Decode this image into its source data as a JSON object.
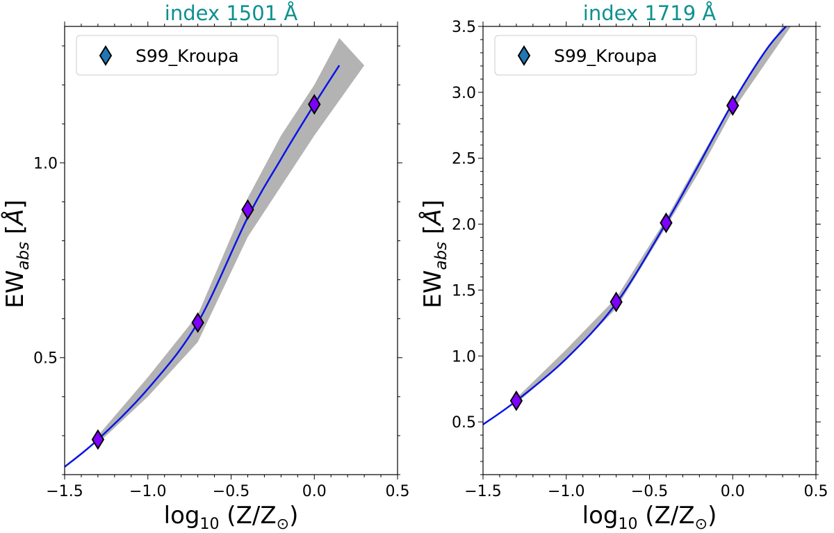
{
  "chart_data": [
    {
      "type": "line",
      "title": "index 1501 Å",
      "xlabel": "log10 (Z/Z⊙)",
      "ylabel": "EWabs [Å]",
      "xlim": [
        -1.5,
        0.5
      ],
      "ylim": [
        0.2,
        1.35
      ],
      "xticks": [
        -1.5,
        -1.0,
        -0.5,
        0.0,
        0.5
      ],
      "xtick_labels": [
        "−1.5",
        "−1.0",
        "−0.5",
        "0.0",
        "0.5"
      ],
      "yticks": [
        0.5,
        1.0
      ],
      "ytick_labels": [
        "0.5",
        "1.0"
      ],
      "legend": {
        "label": "S99_Kroupa",
        "location": "upper-left"
      },
      "points": {
        "x": [
          -1.3,
          -0.7,
          -0.4,
          0.0
        ],
        "y": [
          0.29,
          0.59,
          0.88,
          1.15
        ]
      },
      "fit_curve": {
        "x": [
          -1.5,
          -1.3,
          -1.0,
          -0.7,
          -0.4,
          -0.2,
          0.0,
          0.15
        ],
        "y": [
          0.22,
          0.29,
          0.42,
          0.59,
          0.86,
          1.01,
          1.15,
          1.25
        ]
      },
      "band_upper": {
        "x": [
          -1.3,
          -1.0,
          -0.7,
          -0.4,
          -0.2,
          0.0,
          0.15
        ],
        "y": [
          0.3,
          0.45,
          0.61,
          0.91,
          1.07,
          1.2,
          1.32
        ]
      },
      "band_lower": {
        "x": [
          -1.3,
          -1.0,
          -0.7,
          -0.4,
          -0.2,
          0.0,
          0.3
        ],
        "y": [
          0.28,
          0.4,
          0.54,
          0.81,
          0.94,
          1.07,
          1.25
        ]
      },
      "colors": {
        "curve": "#0a14e6",
        "band": "#b3b3b3",
        "marker": "#7f00ff",
        "legend_marker": "#1f77b4"
      }
    },
    {
      "type": "line",
      "title": "index 1719 Å",
      "xlabel": "log10 (Z/Z⊙)",
      "ylabel": "EWabs [Å]",
      "xlim": [
        -1.5,
        0.5
      ],
      "ylim": [
        0.1,
        3.5
      ],
      "xticks": [
        -1.5,
        -1.0,
        -0.5,
        0.0,
        0.5
      ],
      "xtick_labels": [
        "−1.5",
        "−1.0",
        "−0.5",
        "0.0",
        "0.5"
      ],
      "yticks": [
        0.5,
        1.0,
        1.5,
        2.0,
        2.5,
        3.0,
        3.5
      ],
      "ytick_labels": [
        "0.5",
        "1.0",
        "1.5",
        "2.0",
        "2.5",
        "3.0",
        "3.5"
      ],
      "legend": {
        "label": "S99_Kroupa",
        "location": "upper-left"
      },
      "points": {
        "x": [
          -1.3,
          -0.7,
          -0.4,
          0.0
        ],
        "y": [
          0.66,
          1.41,
          2.01,
          2.9
        ]
      },
      "fit_curve": {
        "x": [
          -1.5,
          -1.3,
          -1.0,
          -0.7,
          -0.4,
          -0.2,
          0.0,
          0.2,
          0.32
        ],
        "y": [
          0.48,
          0.66,
          0.98,
          1.4,
          2.01,
          2.46,
          2.92,
          3.32,
          3.5
        ]
      },
      "band_upper": {
        "x": [
          -1.3,
          -1.0,
          -0.7,
          -0.4,
          -0.2,
          0.0,
          0.3
        ],
        "y": [
          0.68,
          1.05,
          1.44,
          2.04,
          2.49,
          2.93,
          3.5
        ]
      },
      "band_lower": {
        "x": [
          -1.3,
          -1.0,
          -0.7,
          -0.4,
          -0.2,
          0.0,
          0.35
        ],
        "y": [
          0.64,
          0.97,
          1.36,
          1.98,
          2.4,
          2.86,
          3.5
        ]
      },
      "colors": {
        "curve": "#0a14e6",
        "band": "#b3b3b3",
        "marker": "#7f00ff",
        "legend_marker": "#1f77b4"
      }
    }
  ]
}
